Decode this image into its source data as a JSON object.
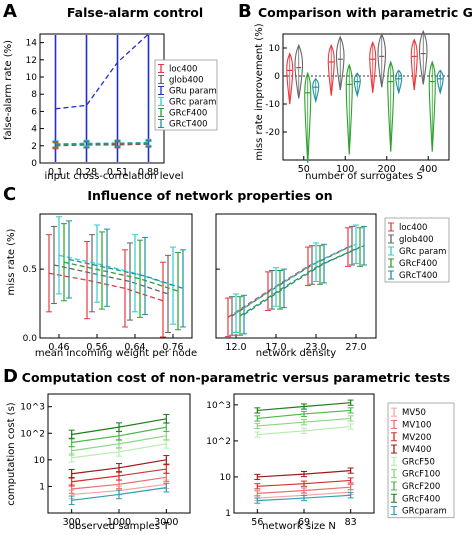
{
  "panels": {
    "A": {
      "letter": "A",
      "title": "False-alarm control",
      "ylabel": "false-alarm rate (%)",
      "xlabel": "input cross-correlation level"
    },
    "B": {
      "letter": "B",
      "title": "Comparison with parametric GRc",
      "ylabel": "miss rate improvement (%)",
      "xlabel": "number of surrogates S"
    },
    "C": {
      "letter": "C",
      "title": "Influence of network properties on",
      "ylabel": "miss rate (%)",
      "xlabel_left": "mean incoming weight per node",
      "xlabel_right": "network density"
    },
    "D": {
      "letter": "D",
      "title": "Computation cost of non-parametric versus parametric tests",
      "ylabel": "computation cost (s)",
      "xlabel_left": "observed samples T",
      "xlabel_right": "network size N"
    }
  },
  "chart_data": [
    {
      "type": "line",
      "panel": "A",
      "title": "False-alarm control",
      "xlabel": "input cross-correlation level",
      "ylabel": "false-alarm rate (%)",
      "categories": [
        "0.1",
        "0.28",
        "0.51",
        "0.88"
      ],
      "ylim": [
        0,
        15
      ],
      "yticks": [
        "0",
        "2",
        "4",
        "6",
        "8",
        "10",
        "12",
        "14"
      ],
      "legend_entries": [
        "loc400",
        "glob400",
        "GRu param",
        "GRc param",
        "GRcF400",
        "GRcT400"
      ],
      "series": [
        {
          "name": "loc400",
          "color": "#e8383d",
          "values": [
            2.0,
            2.1,
            2.1,
            2.2
          ]
        },
        {
          "name": "glob400",
          "color": "#666666",
          "values": [
            2.1,
            2.1,
            2.2,
            2.2
          ]
        },
        {
          "name": "GRu param",
          "color": "#1f2fd0",
          "values": [
            6.3,
            6.7,
            11.7,
            15.0
          ]
        },
        {
          "name": "GRc param",
          "color": "#33cccc",
          "values": [
            2.2,
            2.3,
            2.3,
            2.4
          ]
        },
        {
          "name": "GRcF400",
          "color": "#2ca02c",
          "values": [
            2.1,
            2.2,
            2.3,
            2.3
          ]
        },
        {
          "name": "GRcT400",
          "color": "#1f8fa0",
          "values": [
            2.2,
            2.2,
            2.3,
            2.3
          ]
        }
      ]
    },
    {
      "type": "violin",
      "panel": "B",
      "title": "Comparison with parametric GRc",
      "xlabel": "number of surrogates S",
      "ylabel": "miss rate improvement (%)",
      "categories": [
        "50",
        "100",
        "200",
        "400"
      ],
      "ylim": [
        -30,
        15
      ],
      "yticks": [
        "10",
        "0",
        "-10",
        "-20"
      ],
      "legend_entries": [],
      "series": [
        {
          "name": "loc",
          "color": "#e8383d",
          "values": [
            2,
            5,
            6,
            7
          ]
        },
        {
          "name": "glob",
          "color": "#666666",
          "values": [
            3,
            6,
            7,
            8
          ]
        },
        {
          "name": "GRcF",
          "color": "#2ca02c",
          "values": [
            -6,
            -3,
            -2,
            -2
          ]
        },
        {
          "name": "GRcT",
          "color": "#1f8fa0",
          "values": [
            -4,
            -2,
            -1,
            -1
          ]
        }
      ]
    },
    {
      "type": "line",
      "panel": "C-left",
      "xlabel": "mean incoming weight per node",
      "ylabel": "miss rate (%)",
      "categories": [
        "0.46",
        "0.56",
        "0.64",
        "0.76"
      ],
      "ylim": [
        0,
        0.9
      ],
      "yticks": [
        "0.0",
        "0.5"
      ],
      "series": [
        {
          "name": "loc400",
          "color": "#e8383d",
          "values": [
            0.47,
            0.42,
            0.36,
            0.27
          ]
        },
        {
          "name": "glob400",
          "color": "#666666",
          "values": [
            0.53,
            0.47,
            0.41,
            0.32
          ]
        },
        {
          "name": "GRc param",
          "color": "#33cccc",
          "values": [
            0.6,
            0.54,
            0.47,
            0.38
          ]
        },
        {
          "name": "GRcF400",
          "color": "#2ca02c",
          "values": [
            0.55,
            0.49,
            0.43,
            0.34
          ]
        },
        {
          "name": "GRcT400",
          "color": "#1f8fa0",
          "values": [
            0.57,
            0.51,
            0.45,
            0.36
          ]
        }
      ]
    },
    {
      "type": "line",
      "panel": "C-right",
      "xlabel": "network density",
      "ylabel": "",
      "categories": [
        "12.0",
        "17.0",
        "23.0",
        "27.0"
      ],
      "ylim": [
        0,
        0.9
      ],
      "yticks": [
        "0.0",
        "0.5"
      ],
      "legend_entries": [
        "loc400",
        "glob400",
        "GRc param",
        "GRcF400",
        "GRcT400"
      ],
      "series": [
        {
          "name": "loc400",
          "color": "#e8383d",
          "values": [
            0.15,
            0.34,
            0.52,
            0.66
          ]
        },
        {
          "name": "glob400",
          "color": "#666666",
          "values": [
            0.16,
            0.35,
            0.53,
            0.67
          ]
        },
        {
          "name": "GRc param",
          "color": "#33cccc",
          "values": [
            0.18,
            0.37,
            0.55,
            0.68
          ]
        },
        {
          "name": "GRcF400",
          "color": "#2ca02c",
          "values": [
            0.16,
            0.35,
            0.53,
            0.66
          ]
        },
        {
          "name": "GRcT400",
          "color": "#1f8fa0",
          "values": [
            0.17,
            0.36,
            0.54,
            0.67
          ]
        }
      ]
    },
    {
      "type": "line",
      "panel": "D-left",
      "ylog": true,
      "xlabel": "observed samples T",
      "ylabel": "computation cost (s)",
      "categories": [
        "300",
        "1000",
        "3000"
      ],
      "ylim": [
        0.1,
        3000
      ],
      "yticks": [
        "10^3",
        "10^2",
        "10",
        "1"
      ],
      "series": [
        {
          "name": "MV50",
          "color": "#f4a3a3",
          "values": [
            0.5,
            0.7,
            1.2
          ]
        },
        {
          "name": "MV100",
          "color": "#ec7070",
          "values": [
            0.8,
            1.2,
            2.2
          ]
        },
        {
          "name": "MV200",
          "color": "#d43030",
          "values": [
            1.5,
            2.5,
            4.5
          ]
        },
        {
          "name": "MV400",
          "color": "#a01818",
          "values": [
            3,
            5,
            10
          ]
        },
        {
          "name": "GRcF50",
          "color": "#b8ecb0",
          "values": [
            12,
            20,
            40
          ]
        },
        {
          "name": "GRcF100",
          "color": "#88d880",
          "values": [
            22,
            40,
            80
          ]
        },
        {
          "name": "GRcF200",
          "color": "#4cb848",
          "values": [
            45,
            80,
            170
          ]
        },
        {
          "name": "GRcF400",
          "color": "#1e7e1e",
          "values": [
            90,
            170,
            350
          ]
        },
        {
          "name": "GRcparam",
          "color": "#2fa0b0",
          "values": [
            0.3,
            0.5,
            0.9
          ]
        }
      ]
    },
    {
      "type": "line",
      "panel": "D-right",
      "ylog": true,
      "xlabel": "network size N",
      "ylabel": "",
      "categories": [
        "56",
        "69",
        "83"
      ],
      "ylim": [
        1,
        2000
      ],
      "yticks": [
        "10^3",
        "10^2",
        "10",
        "1"
      ],
      "legend_entries": [
        "MV50",
        "MV100",
        "MV200",
        "MV400",
        "GRcF50",
        "GRcF100",
        "GRcF200",
        "GRcF400",
        "GRcparam"
      ],
      "series": [
        {
          "name": "MV50",
          "color": "#f4a3a3",
          "values": [
            2.6,
            3.1,
            3.8
          ]
        },
        {
          "name": "MV100",
          "color": "#ec7070",
          "values": [
            3.5,
            4.2,
            5.2
          ]
        },
        {
          "name": "MV200",
          "color": "#d43030",
          "values": [
            5.5,
            6.5,
            8
          ]
        },
        {
          "name": "MV400",
          "color": "#a01818",
          "values": [
            10,
            12,
            15
          ]
        },
        {
          "name": "GRcF50",
          "color": "#b8ecb0",
          "values": [
            150,
            190,
            250
          ]
        },
        {
          "name": "GRcF100",
          "color": "#88d880",
          "values": [
            260,
            330,
            420
          ]
        },
        {
          "name": "GRcF200",
          "color": "#4cb848",
          "values": [
            420,
            560,
            700
          ]
        },
        {
          "name": "GRcF400",
          "color": "#1e7e1e",
          "values": [
            700,
            900,
            1150
          ]
        },
        {
          "name": "GRcparam",
          "color": "#2fa0b0",
          "values": [
            2.2,
            2.6,
            3.1
          ]
        }
      ]
    }
  ]
}
